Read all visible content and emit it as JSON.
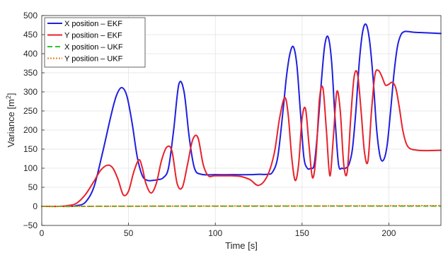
{
  "chart_data": {
    "type": "line",
    "xlabel": "Time [s]",
    "ylabel_main": "Variance [m",
    "ylabel_sup": "2",
    "ylabel_end": "]",
    "xlim": [
      0,
      230
    ],
    "ylim": [
      -50,
      500
    ],
    "xticks": [
      0,
      50,
      100,
      150,
      200
    ],
    "yticks": [
      -50,
      0,
      50,
      100,
      150,
      200,
      250,
      300,
      350,
      400,
      450,
      500
    ],
    "grid": true,
    "legend_position": "top-left",
    "series": [
      {
        "name": "X position – EKF",
        "color": "#1f1fe0",
        "dash": "solid",
        "x": [
          0,
          10,
          17,
          20,
          25,
          30,
          35,
          40,
          43,
          46,
          49,
          52,
          55,
          58,
          61,
          64,
          67,
          70,
          73,
          76,
          79,
          82,
          85,
          88,
          92,
          100,
          110,
          120,
          125,
          130,
          133,
          136,
          139,
          141,
          143,
          145,
          147,
          149,
          151,
          153,
          155,
          157,
          159,
          161,
          163,
          165,
          167,
          169,
          171,
          173,
          175,
          177,
          179,
          181,
          183,
          185,
          187,
          189,
          191,
          193,
          195,
          197,
          199,
          201,
          203,
          205,
          207,
          209,
          211,
          213,
          215,
          220,
          230
        ],
        "y": [
          0,
          0,
          0,
          2,
          10,
          50,
          140,
          240,
          290,
          311,
          290,
          220,
          130,
          80,
          68,
          68,
          70,
          75,
          100,
          200,
          320,
          300,
          180,
          100,
          84,
          83,
          83,
          83,
          84,
          84,
          90,
          130,
          250,
          340,
          400,
          418,
          370,
          250,
          130,
          100,
          100,
          110,
          200,
          320,
          420,
          444,
          380,
          230,
          110,
          100,
          100,
          110,
          150,
          250,
          380,
          460,
          476,
          430,
          330,
          200,
          130,
          122,
          160,
          250,
          350,
          420,
          450,
          458,
          458,
          457,
          456,
          455,
          453
        ]
      },
      {
        "name": "Y position – EKF",
        "color": "#e8222b",
        "dash": "solid",
        "x": [
          0,
          10,
          15,
          20,
          25,
          30,
          34,
          38,
          41,
          44,
          47,
          50,
          53,
          56,
          58,
          60,
          63,
          66,
          69,
          72,
          75,
          78,
          81,
          84,
          87,
          90,
          93,
          96,
          100,
          110,
          115,
          120,
          125,
          130,
          134,
          137,
          140,
          142,
          144,
          146,
          148,
          150,
          152,
          154,
          156,
          158,
          160,
          162,
          164,
          166,
          168,
          170,
          172,
          174,
          176,
          178,
          180,
          182,
          184,
          186,
          188,
          190,
          192,
          194,
          196,
          198,
          200,
          202,
          204,
          206,
          208,
          210,
          212,
          215,
          220,
          230
        ],
        "y": [
          0,
          0,
          2,
          8,
          30,
          65,
          95,
          108,
          100,
          70,
          30,
          40,
          90,
          122,
          100,
          60,
          35,
          60,
          120,
          155,
          145,
          60,
          50,
          110,
          175,
          180,
          110,
          80,
          80,
          80,
          78,
          70,
          55,
          80,
          140,
          230,
          285,
          240,
          130,
          68,
          110,
          230,
          255,
          160,
          75,
          130,
          280,
          310,
          200,
          80,
          180,
          300,
          250,
          110,
          90,
          230,
          340,
          345,
          250,
          140,
          120,
          250,
          345,
          356,
          340,
          318,
          320,
          325,
          310,
          260,
          200,
          165,
          152,
          148,
          146,
          147
        ]
      },
      {
        "name": "X position – UKF",
        "color": "#2ec42e",
        "dash": "7,4",
        "x": [
          0,
          20,
          50,
          100,
          150,
          200,
          230
        ],
        "y": [
          0,
          0,
          0.3,
          0.5,
          0.6,
          0.7,
          0.8
        ]
      },
      {
        "name": "Y position – UKF",
        "color": "#f07a14",
        "dash": "2,2",
        "x": [
          0,
          20,
          50,
          100,
          150,
          200,
          230
        ],
        "y": [
          0,
          0,
          0.5,
          1,
          1.2,
          1.5,
          2
        ]
      }
    ]
  }
}
